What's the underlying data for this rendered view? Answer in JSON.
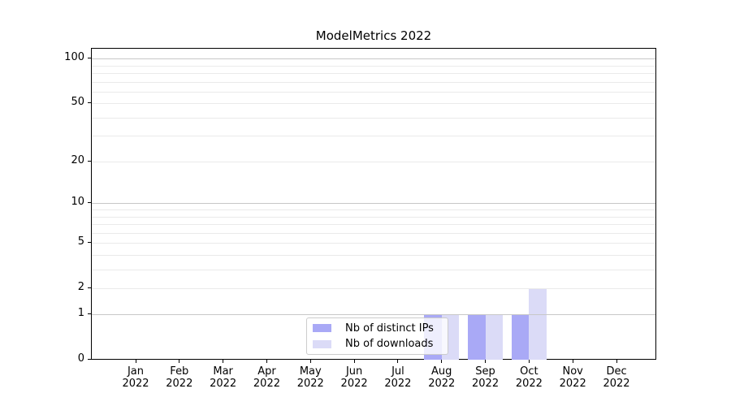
{
  "title": "ModelMetrics 2022",
  "chart_data": {
    "type": "bar",
    "title": "ModelMetrics 2022",
    "categories": [
      "Jan 2022",
      "Feb 2022",
      "Mar 2022",
      "Apr 2022",
      "May 2022",
      "Jun 2022",
      "Jul 2022",
      "Aug 2022",
      "Sep 2022",
      "Oct 2022",
      "Nov 2022",
      "Dec 2022"
    ],
    "series": [
      {
        "name": "Nb of distinct IPs",
        "color": "#a9a9f6",
        "values": [
          0,
          0,
          0,
          0,
          0,
          0,
          0,
          1,
          1,
          1,
          0,
          0
        ]
      },
      {
        "name": "Nb of downloads",
        "color": "#dbdbf7",
        "values": [
          0,
          0,
          0,
          0,
          0,
          0,
          0,
          1,
          1,
          2,
          0,
          0
        ]
      }
    ],
    "xlabel": "",
    "ylabel": "",
    "yscale": "log1p",
    "ylim": [
      0,
      117
    ],
    "ytick_values": [
      0,
      1,
      2,
      5,
      10,
      20,
      50,
      100
    ],
    "ytick_labels": [
      "0",
      "1",
      "2",
      "5",
      "10",
      "20",
      "50",
      "100"
    ],
    "major_grid_values": [
      1,
      10,
      100
    ],
    "minor_grid_values": [
      2,
      3,
      4,
      5,
      6,
      7,
      8,
      9,
      20,
      30,
      40,
      50,
      60,
      70,
      80,
      90
    ],
    "grid": true,
    "legend_position": "lower center (inside plot)"
  },
  "colors": {
    "major_grid": "#c7c7c7",
    "minor_grid": "#eaeaea",
    "spine": "#000000",
    "text": "#000000",
    "legend_border": "#cccccc"
  }
}
